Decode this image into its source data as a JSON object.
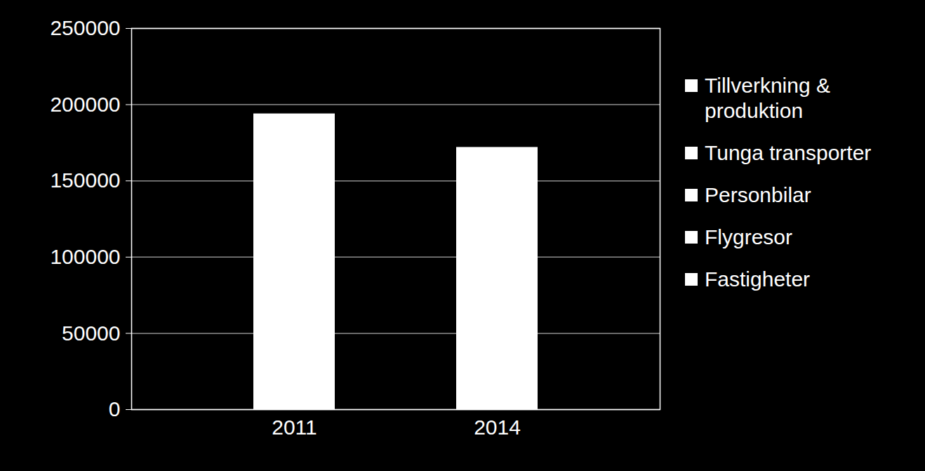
{
  "chart_data": {
    "type": "bar",
    "categories": [
      "2011",
      "2014"
    ],
    "values": [
      194000,
      172000
    ],
    "color": "#ffffff",
    "ylim": [
      0,
      250000
    ],
    "yticks": [
      0,
      50000,
      100000,
      150000,
      200000,
      250000
    ],
    "grid": true,
    "legend": "right",
    "legend_entries": [
      "Tillverkning & produktion",
      "Tunga transporter",
      "Personbilar",
      "Flygresor",
      "Fastigheter"
    ]
  }
}
